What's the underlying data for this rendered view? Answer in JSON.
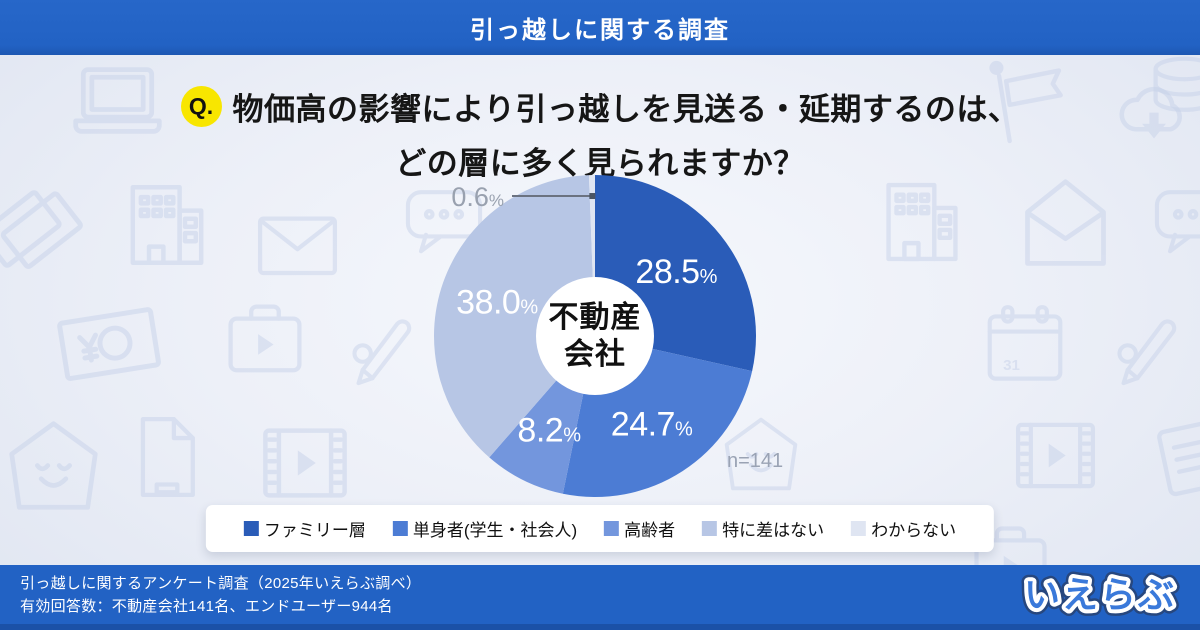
{
  "header": {
    "title": "引っ越しに関する調査"
  },
  "question": {
    "badge": "Q.",
    "line1": "物価高の影響により引っ越しを見送る・延期するのは、",
    "line2": "どの層に多く見られますか？"
  },
  "chart_data": {
    "type": "pie",
    "title": "物価高の影響により引っ越しを見送る・延期するのは、どの層に多く見られますか？",
    "categories": [
      "ファミリー層",
      "単身者(学生・社会人)",
      "高齢者",
      "特に差はない",
      "わからない"
    ],
    "values": [
      28.5,
      24.7,
      8.2,
      38.0,
      0.6
    ],
    "unit": "%",
    "colors": [
      "#2a5cb8",
      "#4c7cd4",
      "#7396dd",
      "#b7c6e5",
      "#dfe5f2"
    ],
    "start_angle_deg": 0,
    "direction": "clockwise",
    "center_label_lines": [
      "不動産",
      "会社"
    ],
    "sample_label": "n=141",
    "outside_label_threshold": 3,
    "label_color_inside": "#ffffff",
    "label_color_outside": "#99a1af",
    "legend_position": "bottom"
  },
  "footer": {
    "line1": "引っ越しに関するアンケート調査（2025年いえらぶ調べ）",
    "line2": "有効回答数：不動産会社141名、エンドユーザー944名",
    "logo": "いえらぶ"
  },
  "colors": {
    "accent_blue": "#2262c4",
    "accent_dark_blue": "#1b51a7",
    "badge_yellow": "#f8e600",
    "background_icon": "#c7d2ea"
  }
}
